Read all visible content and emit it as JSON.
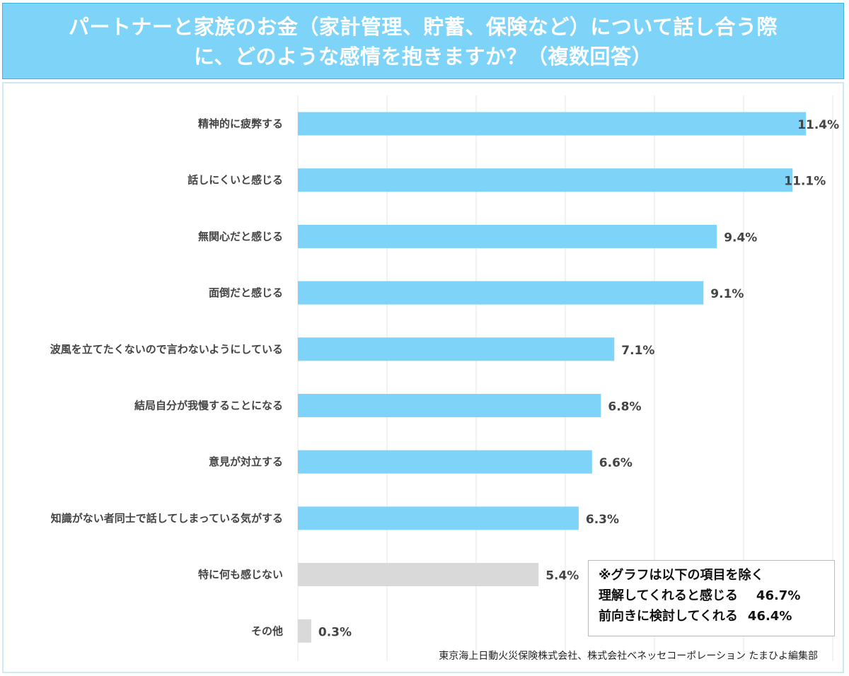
{
  "title": {
    "line1": "パートナーと家族のお金（家計管理、貯蓄、保険など）について話し合う際",
    "line2": "に、どのような感情を抱きますか？（複数回答）"
  },
  "chart_data": {
    "type": "bar",
    "orientation": "horizontal",
    "categories": [
      "精神的に疲弊する",
      "話しにくいと感じる",
      "無関心だと感じる",
      "面倒だと感じる",
      "波風を立てたくないので言わないようにしている",
      "結局自分が我慢することになる",
      "意見が対立する",
      "知識がない者同士で話してしまっている気がする",
      "特に何も感じない",
      "その他"
    ],
    "values": [
      11.4,
      11.1,
      9.4,
      9.1,
      7.1,
      6.8,
      6.6,
      6.3,
      5.4,
      0.3
    ],
    "labels": [
      "11.4%",
      "11.1%",
      "9.4%",
      "9.1%",
      "7.1%",
      "6.8%",
      "6.6%",
      "6.3%",
      "5.4%",
      "0.3%"
    ],
    "colors": [
      "#7ed4f8",
      "#7ed4f8",
      "#7ed4f8",
      "#7ed4f8",
      "#7ed4f8",
      "#7ed4f8",
      "#7ed4f8",
      "#7ed4f8",
      "#d9d9d9",
      "#d9d9d9"
    ],
    "xlim": [
      0,
      12
    ],
    "grid": true,
    "unit": "%"
  },
  "note": {
    "heading": "※グラフは以下の項目を除く",
    "items": [
      {
        "label": "理解してくれると感じる",
        "value": "46.7%"
      },
      {
        "label": "前向きに検討してくれる",
        "value": "46.4%"
      }
    ]
  },
  "source": "東京海上日動火災保険株式会社、株式会社ベネッセコーポレーション たまひよ編集部"
}
